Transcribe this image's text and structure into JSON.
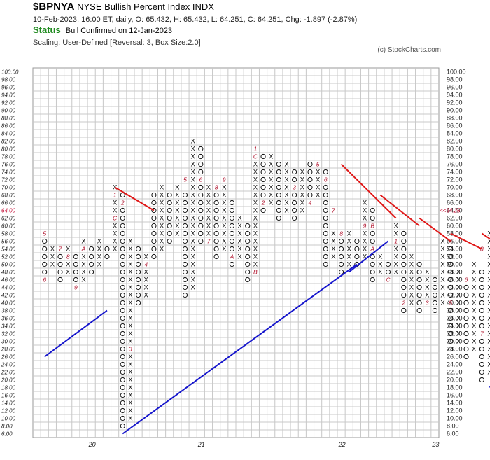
{
  "header": {
    "symbol": "$BPNYA",
    "name": "NYSE Bullish Percent Index",
    "exchange": "INDX",
    "quote": "10-Feb-2023, 16:00 ET, daily, O: 65.432, H: 65.432, L: 64.251, C: 64.251, Chg: -1.897 (-2.87%)",
    "status_label": "Status",
    "status_text": "Bull Confirmed on 12-Jan-2023",
    "scaling": "Scaling: User-Defined [Reversal: 3, Box Size:2.0]",
    "copyright": "(c) StockCharts.com"
  },
  "chart_data": {
    "type": "point-and-figure",
    "box_size": 2,
    "reversal": 3,
    "ylim": [
      6,
      100
    ],
    "y_ticks": [
      "100.00",
      "98.00",
      "96.00",
      "94.00",
      "92.00",
      "90.00",
      "88.00",
      "86.00",
      "84.00",
      "82.00",
      "80.00",
      "78.00",
      "76.00",
      "74.00",
      "72.00",
      "70.00",
      "68.00",
      "66.00",
      "64.00",
      "62.00",
      "60.00",
      "58.00",
      "56.00",
      "54.00",
      "52.00",
      "50.00",
      "48.00",
      "46.00",
      "44.00",
      "42.00",
      "40.00",
      "38.00",
      "36.00",
      "34.00",
      "32.00",
      "30.00",
      "28.00",
      "26.00",
      "24.00",
      "22.00",
      "20.00",
      "18.00",
      "16.00",
      "14.00",
      "12.00",
      "10.00",
      "8.00",
      "6.00"
    ],
    "current_value_left": "64.00",
    "current_value_right": "64.25",
    "year_labels": [
      {
        "col": 6,
        "label": "20"
      },
      {
        "col": 20,
        "label": "21"
      },
      {
        "col": 38,
        "label": "22"
      },
      {
        "col": 50,
        "label": "23"
      }
    ],
    "grid": true,
    "columns": [
      {
        "type": "O",
        "low": 48,
        "high": 58
      },
      {
        "type": "X",
        "low": 50,
        "high": 54
      },
      {
        "type": "O",
        "low": 46,
        "high": 52
      },
      {
        "type": "X",
        "low": 48,
        "high": 54
      },
      {
        "type": "O",
        "low": 44,
        "high": 52
      },
      {
        "type": "X",
        "low": 46,
        "high": 56
      },
      {
        "type": "O",
        "low": 48,
        "high": 54
      },
      {
        "type": "X",
        "low": 50,
        "high": 56
      },
      {
        "type": "O",
        "low": 52,
        "high": 54
      },
      {
        "type": "X",
        "low": 54,
        "high": 70
      },
      {
        "type": "O",
        "low": 8,
        "high": 68
      },
      {
        "type": "X",
        "low": 10,
        "high": 56
      },
      {
        "type": "O",
        "low": 40,
        "high": 54
      },
      {
        "type": "X",
        "low": 42,
        "high": 52
      },
      {
        "type": "O",
        "low": 52,
        "high": 68
      },
      {
        "type": "X",
        "low": 54,
        "high": 70
      },
      {
        "type": "O",
        "low": 56,
        "high": 68
      },
      {
        "type": "X",
        "low": 58,
        "high": 70
      },
      {
        "type": "O",
        "low": 42,
        "high": 68
      },
      {
        "type": "X",
        "low": 44,
        "high": 82
      },
      {
        "type": "O",
        "low": 56,
        "high": 80
      },
      {
        "type": "X",
        "low": 58,
        "high": 70
      },
      {
        "type": "O",
        "low": 52,
        "high": 68
      },
      {
        "type": "X",
        "low": 54,
        "high": 70
      },
      {
        "type": "O",
        "low": 50,
        "high": 66
      },
      {
        "type": "X",
        "low": 52,
        "high": 62
      },
      {
        "type": "O",
        "low": 46,
        "high": 60
      },
      {
        "type": "X",
        "low": 48,
        "high": 80
      },
      {
        "type": "O",
        "low": 64,
        "high": 78
      },
      {
        "type": "X",
        "low": 66,
        "high": 78
      },
      {
        "type": "O",
        "low": 62,
        "high": 76
      },
      {
        "type": "X",
        "low": 64,
        "high": 76
      },
      {
        "type": "O",
        "low": 62,
        "high": 74
      },
      {
        "type": "X",
        "low": 64,
        "high": 74
      },
      {
        "type": "O",
        "low": 66,
        "high": 76
      },
      {
        "type": "X",
        "low": 68,
        "high": 76
      },
      {
        "type": "O",
        "low": 50,
        "high": 74
      },
      {
        "type": "X",
        "low": 52,
        "high": 58
      },
      {
        "type": "O",
        "low": 48,
        "high": 56
      },
      {
        "type": "X",
        "low": 50,
        "high": 58
      },
      {
        "type": "O",
        "low": 50,
        "high": 56
      },
      {
        "type": "X",
        "low": 52,
        "high": 66
      },
      {
        "type": "O",
        "low": 46,
        "high": 64
      },
      {
        "type": "X",
        "low": 48,
        "high": 52
      },
      {
        "type": "O",
        "low": 46,
        "high": 50
      },
      {
        "type": "X",
        "low": 48,
        "high": 60
      },
      {
        "type": "O",
        "low": 38,
        "high": 58
      },
      {
        "type": "X",
        "low": 40,
        "high": 52
      },
      {
        "type": "O",
        "low": 38,
        "high": 50
      },
      {
        "type": "X",
        "low": 40,
        "high": 48
      },
      {
        "type": "O",
        "low": 38,
        "high": 46
      },
      {
        "type": "X",
        "low": 40,
        "high": 56
      },
      {
        "type": "O",
        "low": 28,
        "high": 54
      },
      {
        "type": "X",
        "low": 30,
        "high": 48
      },
      {
        "type": "O",
        "low": 26,
        "high": 46
      },
      {
        "type": "X",
        "low": 28,
        "high": 50
      },
      {
        "type": "O",
        "low": 20,
        "high": 48
      },
      {
        "type": "X",
        "low": 22,
        "high": 58
      },
      {
        "type": "O",
        "low": 28,
        "high": 56
      },
      {
        "type": "X",
        "low": 30,
        "high": 58
      },
      {
        "type": "O",
        "low": 20,
        "high": 56
      },
      {
        "type": "X",
        "low": 22,
        "high": 54
      },
      {
        "type": "O",
        "low": 42,
        "high": 54
      },
      {
        "type": "X",
        "low": 44,
        "high": 66
      }
    ],
    "month_markers": [
      {
        "col": 0,
        "value": 58,
        "label": "5"
      },
      {
        "col": 0,
        "value": 46,
        "label": "6"
      },
      {
        "col": 2,
        "value": 54,
        "label": "7"
      },
      {
        "col": 3,
        "value": 52,
        "label": "8"
      },
      {
        "col": 4,
        "value": 44,
        "label": "9"
      },
      {
        "col": 5,
        "value": 54,
        "label": "A"
      },
      {
        "col": 9,
        "value": 68,
        "label": "1"
      },
      {
        "col": 9,
        "value": 62,
        "label": "C"
      },
      {
        "col": 10,
        "value": 66,
        "label": "2"
      },
      {
        "col": 11,
        "value": 28,
        "label": "3"
      },
      {
        "col": 13,
        "value": 50,
        "label": "4"
      },
      {
        "col": 18,
        "value": 72,
        "label": "5"
      },
      {
        "col": 20,
        "value": 72,
        "label": "6"
      },
      {
        "col": 21,
        "value": 56,
        "label": "7"
      },
      {
        "col": 22,
        "value": 70,
        "label": "8"
      },
      {
        "col": 23,
        "value": 72,
        "label": "9"
      },
      {
        "col": 24,
        "value": 52,
        "label": "A"
      },
      {
        "col": 27,
        "value": 80,
        "label": "1"
      },
      {
        "col": 27,
        "value": 78,
        "label": "C"
      },
      {
        "col": 27,
        "value": 48,
        "label": "B"
      },
      {
        "col": 28,
        "value": 66,
        "label": "2"
      },
      {
        "col": 32,
        "value": 70,
        "label": "3"
      },
      {
        "col": 34,
        "value": 66,
        "label": "4"
      },
      {
        "col": 35,
        "value": 76,
        "label": "5"
      },
      {
        "col": 36,
        "value": 72,
        "label": "6"
      },
      {
        "col": 37,
        "value": 64,
        "label": "7"
      },
      {
        "col": 38,
        "value": 58,
        "label": "8"
      },
      {
        "col": 41,
        "value": 60,
        "label": "9"
      },
      {
        "col": 42,
        "value": 60,
        "label": "B"
      },
      {
        "col": 42,
        "value": 54,
        "label": "A"
      },
      {
        "col": 44,
        "value": 46,
        "label": "C"
      },
      {
        "col": 45,
        "value": 56,
        "label": "1"
      },
      {
        "col": 46,
        "value": 40,
        "label": "2"
      },
      {
        "col": 49,
        "value": 40,
        "label": "3"
      },
      {
        "col": 52,
        "value": 56,
        "label": "4"
      },
      {
        "col": 52,
        "value": 40,
        "label": "5"
      },
      {
        "col": 54,
        "value": 46,
        "label": "6"
      },
      {
        "col": 56,
        "value": 32,
        "label": "7"
      },
      {
        "col": 56,
        "value": 54,
        "label": "8"
      },
      {
        "col": 58,
        "value": 28,
        "label": "A"
      },
      {
        "col": 58,
        "value": 46,
        "label": "9"
      },
      {
        "col": 59,
        "value": 56,
        "label": "C"
      },
      {
        "col": 60,
        "value": 32,
        "label": "B"
      },
      {
        "col": 62,
        "value": 44,
        "label": "1"
      },
      {
        "col": 63,
        "value": 66,
        "label": "2"
      }
    ],
    "support_lines": [
      {
        "x1": 0,
        "y1": 26,
        "x2": 8,
        "y2": 38
      },
      {
        "x1": 10,
        "y1": 6,
        "x2": 40,
        "y2": 50
      },
      {
        "x1": 39,
        "y1": 48,
        "x2": 44,
        "y2": 56
      },
      {
        "x1": 57,
        "y1": 18,
        "x2": 58,
        "y2": 20
      },
      {
        "x1": 60,
        "y1": 18,
        "x2": 64,
        "y2": 26
      }
    ],
    "resistance_lines": [
      {
        "x1": 9,
        "y1": 70,
        "x2": 14,
        "y2": 64
      },
      {
        "x1": 38,
        "y1": 76,
        "x2": 45,
        "y2": 62
      },
      {
        "x1": 43,
        "y1": 68,
        "x2": 48,
        "y2": 60
      },
      {
        "x1": 48,
        "y1": 62,
        "x2": 52,
        "y2": 56
      },
      {
        "x1": 52,
        "y1": 58,
        "x2": 56,
        "y2": 54
      },
      {
        "x1": 56,
        "y1": 58,
        "x2": 59,
        "y2": 54
      }
    ],
    "colors": {
      "grid": "#c8c8c8",
      "support": "#1515cc",
      "resistance": "#e01818",
      "month_marker": "#b0102a",
      "price": "#c0002a",
      "symbol": "#111111"
    }
  }
}
